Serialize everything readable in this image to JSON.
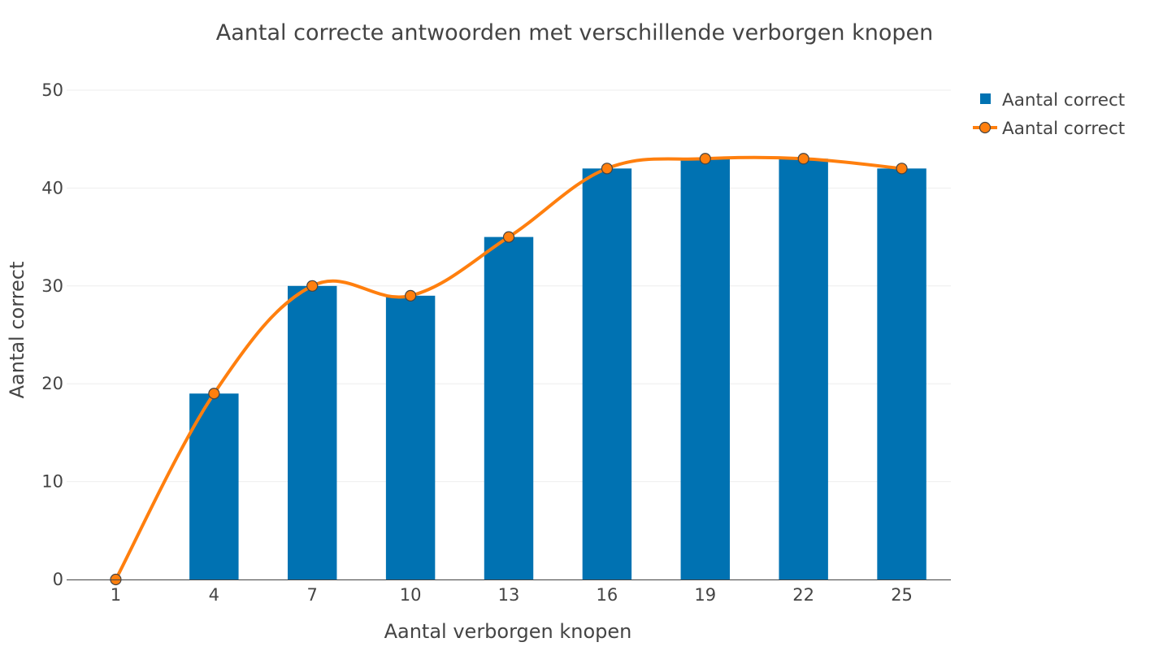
{
  "chart_data": {
    "type": "bar",
    "title": "Aantal correcte antwoorden met verschillende verborgen knopen",
    "xlabel": "Aantal verborgen knopen",
    "ylabel": "Aantal correct",
    "categories": [
      "1",
      "4",
      "7",
      "10",
      "13",
      "16",
      "19",
      "22",
      "25"
    ],
    "ylim": [
      0,
      50
    ],
    "yticks": [
      "0",
      "10",
      "20",
      "30",
      "40",
      "50"
    ],
    "grid": true,
    "legend_position": "top-right",
    "series": [
      {
        "name": "Aantal correct",
        "type": "bar",
        "color": "#0072b2",
        "values": [
          0,
          19,
          30,
          29,
          35,
          42,
          43,
          43,
          42
        ]
      },
      {
        "name": "Aantal correct",
        "type": "line",
        "color": "#ff7f0e",
        "values": [
          0,
          19,
          30,
          29,
          35,
          42,
          43,
          43,
          42
        ]
      }
    ]
  }
}
